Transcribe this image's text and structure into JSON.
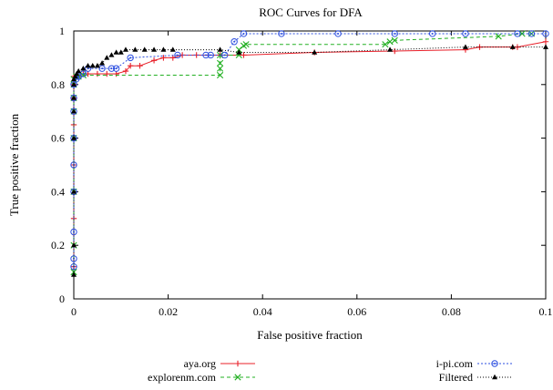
{
  "chart_data": {
    "type": "line",
    "title": "ROC Curves for DFA",
    "xlabel": "False positive fraction",
    "ylabel": "True positive fraction",
    "xlim": [
      0,
      0.1
    ],
    "ylim": [
      0,
      1
    ],
    "xticks": [
      0,
      0.02,
      0.04,
      0.06,
      0.08,
      0.1
    ],
    "xtick_labels": [
      "0",
      "0.02",
      "0.04",
      "0.06",
      "0.08",
      "0.1"
    ],
    "yticks": [
      0,
      0.2,
      0.4,
      0.6,
      0.8,
      1
    ],
    "ytick_labels": [
      "0",
      "0.2",
      "0.4",
      "0.6",
      "0.8",
      "1"
    ],
    "grid": false,
    "legend_position": "bottom",
    "series": [
      {
        "name": "aya.org",
        "color": "#e8202a",
        "marker": "plus",
        "dash": "",
        "x": [
          0,
          0,
          0,
          0,
          0,
          0,
          0,
          0.0005,
          0.001,
          0.002,
          0.003,
          0.005,
          0.007,
          0.009,
          0.011,
          0.012,
          0.014,
          0.017,
          0.019,
          0.021,
          0.023,
          0.026,
          0.031,
          0.036,
          0.051,
          0.068,
          0.083,
          0.086,
          0.093,
          0.094,
          0.1
        ],
        "y": [
          0.12,
          0.3,
          0.5,
          0.65,
          0.75,
          0.8,
          0.83,
          0.83,
          0.83,
          0.84,
          0.84,
          0.84,
          0.84,
          0.84,
          0.85,
          0.87,
          0.87,
          0.89,
          0.9,
          0.9,
          0.91,
          0.91,
          0.91,
          0.91,
          0.92,
          0.925,
          0.93,
          0.94,
          0.94,
          0.94,
          0.96
        ]
      },
      {
        "name": "explorenm.com",
        "color": "#22b022",
        "marker": "cross",
        "dash": "4,3",
        "x": [
          0,
          0,
          0,
          0,
          0,
          0,
          0,
          0,
          0.0005,
          0.001,
          0.002,
          0.031,
          0.031,
          0.031,
          0.031,
          0.035,
          0.035,
          0.036,
          0.0365,
          0.066,
          0.067,
          0.068,
          0.09,
          0.095,
          0.097
        ],
        "y": [
          0.1,
          0.2,
          0.4,
          0.6,
          0.7,
          0.75,
          0.8,
          0.82,
          0.83,
          0.83,
          0.835,
          0.835,
          0.86,
          0.88,
          0.91,
          0.91,
          0.93,
          0.945,
          0.95,
          0.95,
          0.96,
          0.965,
          0.98,
          0.99,
          0.99
        ]
      },
      {
        "name": "i-pi.com",
        "color": "#2d4fe0",
        "marker": "circle",
        "dash": "2,2",
        "x": [
          0,
          0,
          0,
          0,
          0,
          0,
          0,
          0,
          0,
          0.0005,
          0.001,
          0.002,
          0.003,
          0.006,
          0.008,
          0.009,
          0.012,
          0.022,
          0.028,
          0.029,
          0.032,
          0.034,
          0.036,
          0.044,
          0.056,
          0.068,
          0.076,
          0.083,
          0.094,
          0.097,
          0.1
        ],
        "y": [
          0.12,
          0.15,
          0.25,
          0.4,
          0.5,
          0.6,
          0.7,
          0.75,
          0.8,
          0.82,
          0.83,
          0.84,
          0.86,
          0.86,
          0.86,
          0.86,
          0.9,
          0.91,
          0.91,
          0.91,
          0.91,
          0.96,
          0.99,
          0.99,
          0.99,
          0.99,
          0.99,
          0.99,
          0.99,
          0.99,
          0.99
        ]
      },
      {
        "name": "Filtered",
        "color": "#000000",
        "marker": "triangle",
        "dash": "1,2",
        "x": [
          0,
          0,
          0,
          0,
          0,
          0,
          0,
          0,
          0.0003,
          0.0006,
          0.001,
          0.002,
          0.003,
          0.004,
          0.005,
          0.006,
          0.007,
          0.008,
          0.009,
          0.01,
          0.011,
          0.013,
          0.015,
          0.017,
          0.019,
          0.021,
          0.031,
          0.035,
          0.051,
          0.067,
          0.083,
          0.093,
          0.1
        ],
        "y": [
          0.09,
          0.2,
          0.4,
          0.6,
          0.7,
          0.75,
          0.8,
          0.82,
          0.83,
          0.84,
          0.85,
          0.86,
          0.87,
          0.87,
          0.87,
          0.88,
          0.9,
          0.91,
          0.92,
          0.92,
          0.93,
          0.93,
          0.93,
          0.93,
          0.93,
          0.93,
          0.93,
          0.92,
          0.92,
          0.93,
          0.94,
          0.94,
          0.94
        ]
      }
    ]
  }
}
